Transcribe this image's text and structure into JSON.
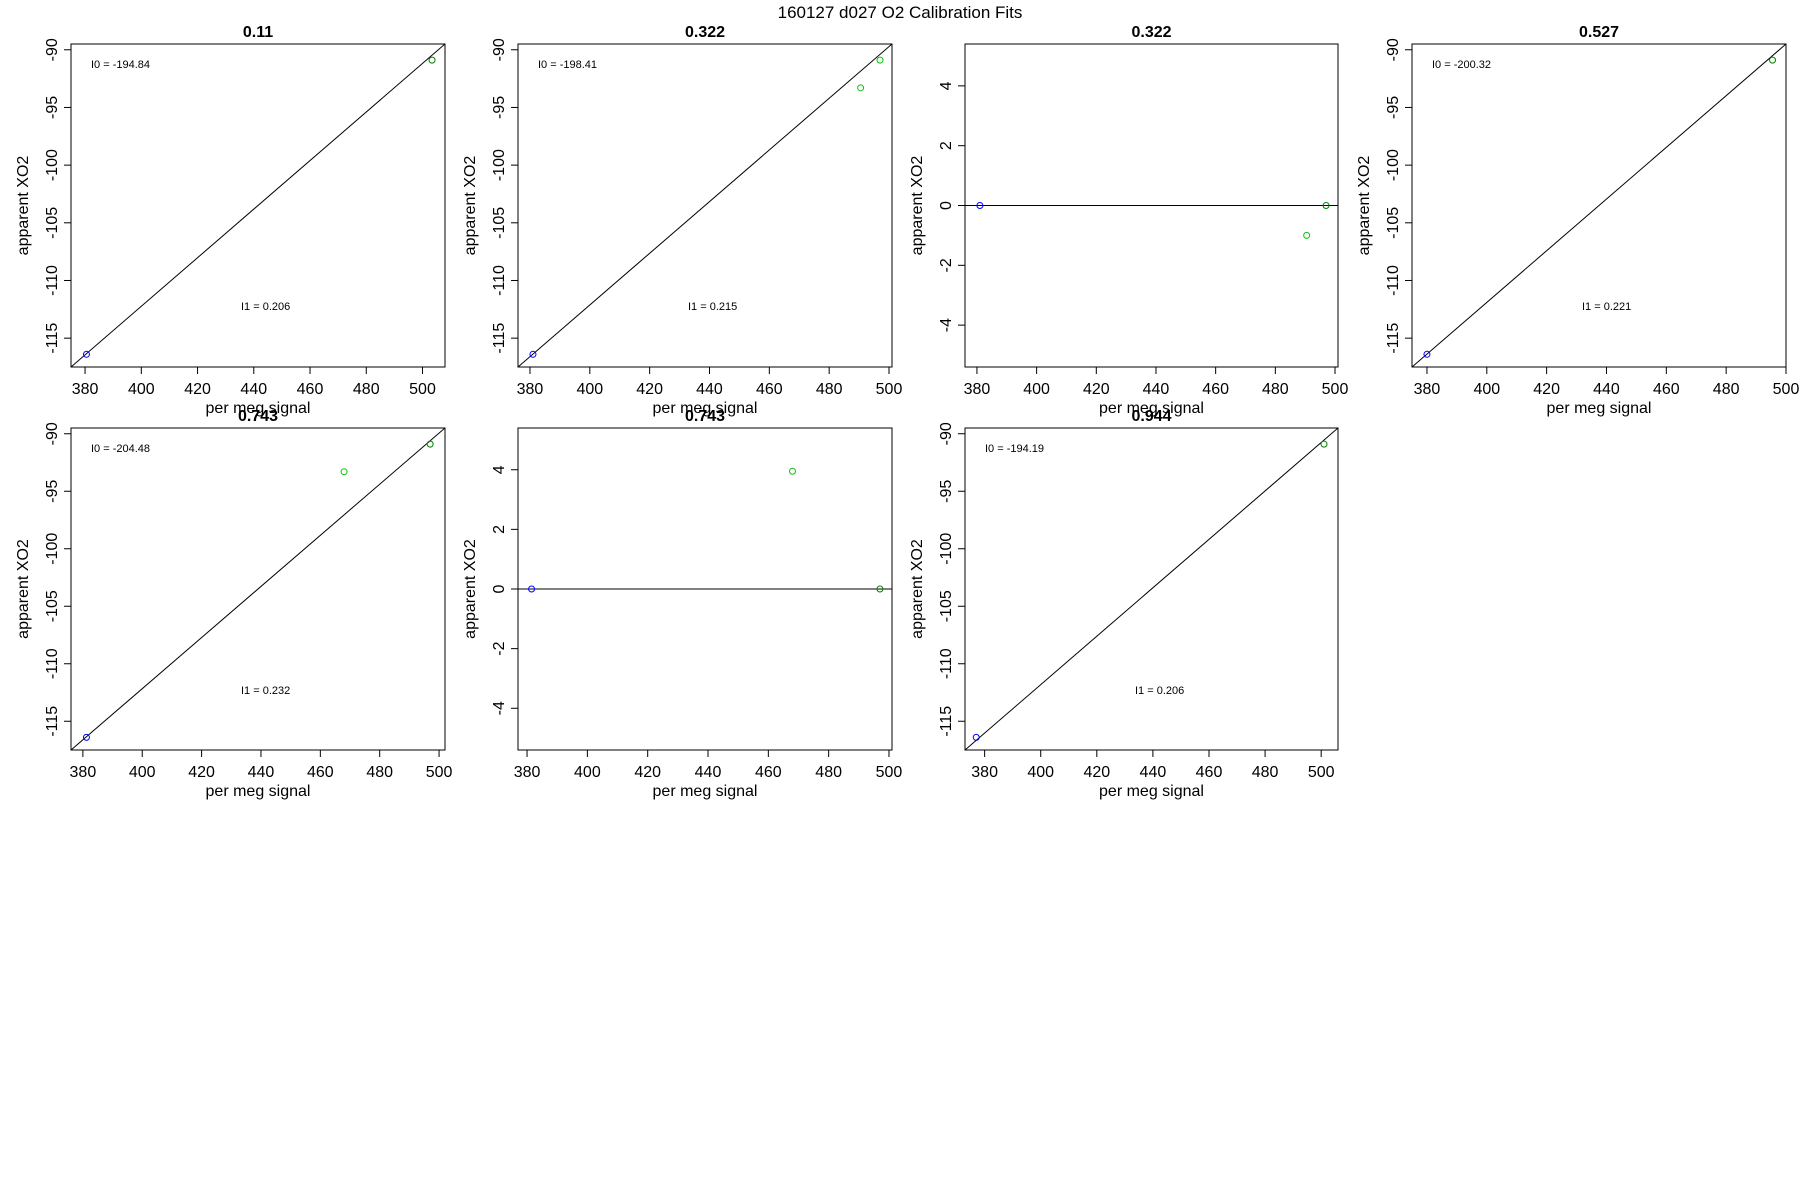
{
  "figure_title": "160127   d027   O2 Calibration Fits",
  "colors": {
    "axis": "#000000",
    "fit_line": "#000000",
    "reference_point": "#0000ff",
    "standard_point": "#00cc00",
    "anchor_point": "#008000"
  },
  "chart_data": [
    {
      "type": "scatter",
      "title": "0.11",
      "xlabel": "per meg signal",
      "ylabel": "apparent XO2",
      "xlim": [
        375,
        508
      ],
      "ylim": [
        -117.5,
        -89.5
      ],
      "xticks": [
        380,
        400,
        420,
        440,
        460,
        480,
        500
      ],
      "yticks": [
        -115,
        -110,
        -105,
        -100,
        -95,
        -90
      ],
      "fit_line": {
        "x": [
          375,
          508
        ],
        "y": [
          -117.5,
          -89.5
        ]
      },
      "points": [
        {
          "x": 380.5,
          "y": -116.4,
          "role": "reference"
        },
        {
          "x": 503.4,
          "y": -90.9,
          "role": "anchor"
        }
      ],
      "annotations": [
        {
          "label": "I0",
          "value": "-194.84"
        },
        {
          "label": "I1",
          "value": "0.206"
        }
      ]
    },
    {
      "type": "scatter",
      "title": "0.322",
      "xlabel": "per meg signal",
      "ylabel": "apparent XO2",
      "xlim": [
        376,
        501
      ],
      "ylim": [
        -117.5,
        -89.5
      ],
      "xticks": [
        380,
        400,
        420,
        440,
        460,
        480,
        500
      ],
      "yticks": [
        -115,
        -110,
        -105,
        -100,
        -95,
        -90
      ],
      "fit_line": {
        "x": [
          376,
          501
        ],
        "y": [
          -117.5,
          -89.5
        ]
      },
      "points": [
        {
          "x": 381,
          "y": -116.4,
          "role": "reference"
        },
        {
          "x": 490.5,
          "y": -93.3,
          "role": "standard"
        },
        {
          "x": 497,
          "y": -90.9,
          "role": "standard"
        }
      ],
      "annotations": [
        {
          "label": "I0",
          "value": "-198.41"
        },
        {
          "label": "I1",
          "value": "0.215"
        }
      ]
    },
    {
      "type": "scatter",
      "title": "0.322",
      "xlabel": "per meg signal",
      "ylabel": "apparent XO2",
      "xlim": [
        376,
        501
      ],
      "ylim": [
        -5.4,
        5.4
      ],
      "xticks": [
        380,
        400,
        420,
        440,
        460,
        480,
        500
      ],
      "yticks": [
        -4,
        -2,
        0,
        2,
        4
      ],
      "fit_line": {
        "x": [
          376,
          501
        ],
        "y": [
          0,
          0
        ]
      },
      "points": [
        {
          "x": 381,
          "y": 0,
          "role": "reference"
        },
        {
          "x": 490.5,
          "y": -1.0,
          "role": "standard"
        },
        {
          "x": 497,
          "y": 0,
          "role": "anchor"
        }
      ],
      "annotations": []
    },
    {
      "type": "scatter",
      "title": "0.527",
      "xlabel": "per meg signal",
      "ylabel": "apparent XO2",
      "xlim": [
        375,
        500
      ],
      "ylim": [
        -117.5,
        -89.5
      ],
      "xticks": [
        380,
        400,
        420,
        440,
        460,
        480,
        500
      ],
      "yticks": [
        -115,
        -110,
        -105,
        -100,
        -95,
        -90
      ],
      "fit_line": {
        "x": [
          375,
          500
        ],
        "y": [
          -117.5,
          -89.5
        ]
      },
      "points": [
        {
          "x": 380,
          "y": -116.4,
          "role": "reference"
        },
        {
          "x": 495.5,
          "y": -90.9,
          "role": "anchor"
        }
      ],
      "annotations": [
        {
          "label": "I0",
          "value": "-200.32"
        },
        {
          "label": "I1",
          "value": "0.221"
        }
      ]
    },
    {
      "type": "scatter",
      "title": "0.743",
      "xlabel": "per meg signal",
      "ylabel": "apparent XO2",
      "xlim": [
        376,
        502
      ],
      "ylim": [
        -117.5,
        -89.5
      ],
      "xticks": [
        380,
        400,
        420,
        440,
        460,
        480,
        500
      ],
      "yticks": [
        -115,
        -110,
        -105,
        -100,
        -95,
        -90
      ],
      "fit_line": {
        "x": [
          376,
          502
        ],
        "y": [
          -117.5,
          -89.5
        ]
      },
      "points": [
        {
          "x": 381.2,
          "y": -116.4,
          "role": "reference"
        },
        {
          "x": 468,
          "y": -93.3,
          "role": "standard"
        },
        {
          "x": 497,
          "y": -90.9,
          "role": "anchor"
        }
      ],
      "annotations": [
        {
          "label": "I0",
          "value": "-204.48"
        },
        {
          "label": "I1",
          "value": "0.232"
        }
      ]
    },
    {
      "type": "scatter",
      "title": "0.743",
      "xlabel": "per meg signal",
      "ylabel": "apparent XO2",
      "xlim": [
        377,
        501
      ],
      "ylim": [
        -5.4,
        5.4
      ],
      "xticks": [
        380,
        400,
        420,
        440,
        460,
        480,
        500
      ],
      "yticks": [
        -4,
        -2,
        0,
        2,
        4
      ],
      "fit_line": {
        "x": [
          377,
          501
        ],
        "y": [
          0,
          0
        ]
      },
      "points": [
        {
          "x": 381.5,
          "y": 0,
          "role": "reference"
        },
        {
          "x": 468,
          "y": 3.95,
          "role": "standard"
        },
        {
          "x": 497,
          "y": 0,
          "role": "anchor"
        }
      ],
      "annotations": []
    },
    {
      "type": "scatter",
      "title": "0.944",
      "xlabel": "per meg signal",
      "ylabel": "apparent XO2",
      "xlim": [
        373,
        506
      ],
      "ylim": [
        -117.5,
        -89.5
      ],
      "xticks": [
        380,
        400,
        420,
        440,
        460,
        480,
        500
      ],
      "yticks": [
        -115,
        -110,
        -105,
        -100,
        -95,
        -90
      ],
      "fit_line": {
        "x": [
          373,
          506
        ],
        "y": [
          -117.5,
          -89.5
        ]
      },
      "points": [
        {
          "x": 377,
          "y": -116.4,
          "role": "reference"
        },
        {
          "x": 501,
          "y": -90.9,
          "role": "anchor"
        }
      ],
      "annotations": [
        {
          "label": "I0",
          "value": "-194.19"
        },
        {
          "label": "I1",
          "value": "0.206"
        }
      ]
    }
  ]
}
